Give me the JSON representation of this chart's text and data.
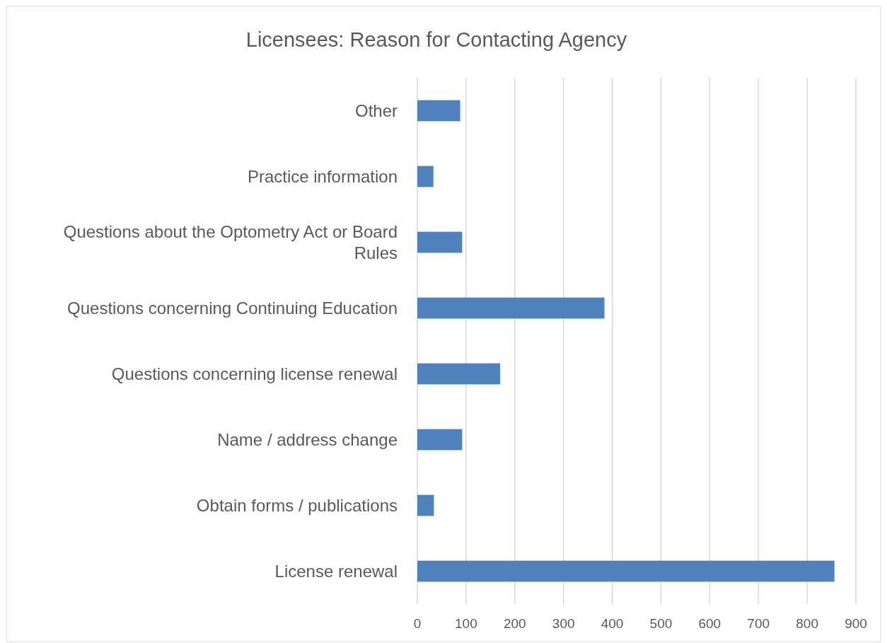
{
  "chart_data": {
    "type": "bar",
    "orientation": "horizontal",
    "title": "Licensees: Reason for Contacting Agency",
    "categories": [
      "Other",
      "Practice information",
      "Questions about the Optometry Act or Board Rules",
      "Questions concerning Continuing Education",
      "Questions concerning license renewal",
      "Name / address change",
      "Obtain forms / publications",
      "License renewal"
    ],
    "values": [
      88,
      33,
      92,
      384,
      170,
      92,
      34,
      856
    ],
    "color": "#4f81bd",
    "xlim": [
      0,
      900
    ],
    "xticks": [
      0,
      100,
      200,
      300,
      400,
      500,
      600,
      700,
      800,
      900
    ],
    "grid": "x"
  }
}
